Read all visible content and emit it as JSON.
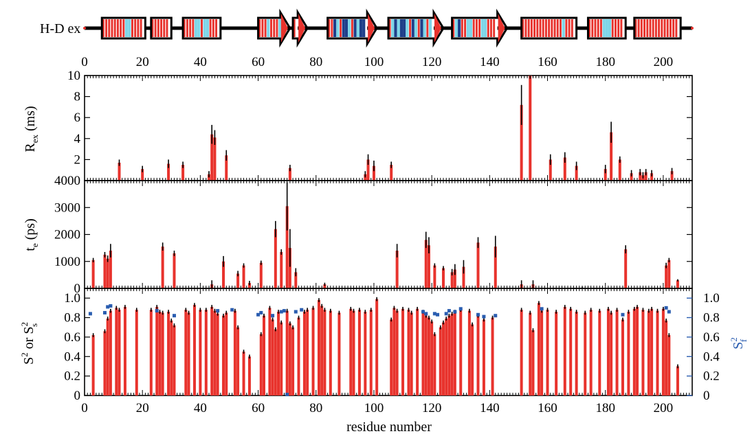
{
  "chart_data": {
    "type": "bar",
    "xlabel": "residue number",
    "xlim": [
      0,
      210
    ],
    "x_ticks": [
      0,
      20,
      40,
      60,
      80,
      100,
      120,
      140,
      160,
      180,
      200
    ],
    "colors": {
      "bar": "#e8332d",
      "error": "#000000",
      "sf2": "#2a5db0",
      "dark_blue": "#1f3f8a",
      "light_blue": "#7ed6e8"
    },
    "hdex": {
      "label": "H-D ex",
      "elements": [
        {
          "type": "helix",
          "start": 6,
          "end": 21,
          "blue": [
            [
              14,
              "l"
            ],
            [
              15,
              "l"
            ]
          ]
        },
        {
          "type": "helix",
          "start": 23,
          "end": 30,
          "blue": []
        },
        {
          "type": "helix",
          "start": 34,
          "end": 47,
          "blue": [
            [
              38,
              "l"
            ],
            [
              39,
              "l"
            ],
            [
              41,
              "l"
            ],
            [
              42,
              "l"
            ]
          ]
        },
        {
          "type": "strand",
          "start": 60,
          "end": 71,
          "blue": [
            [
              63,
              "l"
            ],
            [
              67,
              "l"
            ]
          ]
        },
        {
          "type": "strand",
          "start": 72,
          "end": 77,
          "blue": []
        },
        {
          "type": "strand",
          "start": 84,
          "end": 101,
          "blue": [
            [
              86,
              "d"
            ],
            [
              87,
              "l"
            ],
            [
              89,
              "d"
            ],
            [
              90,
              "d"
            ],
            [
              91,
              "l"
            ],
            [
              93,
              "d"
            ],
            [
              94,
              "l"
            ],
            [
              95,
              "d"
            ],
            [
              96,
              "d"
            ],
            [
              98,
              "l"
            ]
          ]
        },
        {
          "type": "strand",
          "start": 105,
          "end": 124,
          "blue": [
            [
              106,
              "l"
            ],
            [
              107,
              "d"
            ],
            [
              108,
              "l"
            ],
            [
              109,
              "d"
            ],
            [
              110,
              "d"
            ],
            [
              111,
              "l"
            ],
            [
              113,
              "d"
            ],
            [
              114,
              "l"
            ],
            [
              116,
              "d"
            ],
            [
              117,
              "l"
            ],
            [
              119,
              "l"
            ]
          ]
        },
        {
          "type": "strand",
          "start": 127,
          "end": 146,
          "blue": [
            [
              128,
              "l"
            ],
            [
              129,
              "d"
            ],
            [
              132,
              "l"
            ],
            [
              133,
              "l"
            ],
            [
              137,
              "l"
            ],
            [
              138,
              "l"
            ]
          ]
        },
        {
          "type": "helix",
          "start": 151,
          "end": 170,
          "blue": [
            [
              165,
              "l"
            ]
          ]
        },
        {
          "type": "helix",
          "start": 174,
          "end": 187,
          "blue": [
            [
              179,
              "l"
            ],
            [
              180,
              "l"
            ],
            [
              181,
              "l"
            ]
          ]
        },
        {
          "type": "helix",
          "start": 190,
          "end": 206,
          "blue": []
        }
      ]
    },
    "rex": {
      "ylabel_main": "R",
      "ylabel_sub": "ex",
      "ylabel_unit": " (ms)",
      "ylim": [
        0,
        10
      ],
      "ticks": [
        2,
        4,
        6,
        8,
        10
      ],
      "points": [
        [
          12,
          1.7,
          0.3
        ],
        [
          20,
          1.1,
          0.3
        ],
        [
          29,
          1.6,
          0.4
        ],
        [
          34,
          1.5,
          0.3
        ],
        [
          43,
          0.6,
          0.3
        ],
        [
          44,
          4.4,
          0.9
        ],
        [
          45,
          4.1,
          0.7
        ],
        [
          49,
          2.4,
          0.5
        ],
        [
          71,
          1.2,
          0.3
        ],
        [
          97,
          0.6,
          0.3
        ],
        [
          98,
          2.0,
          0.5
        ],
        [
          100,
          1.4,
          0.5
        ],
        [
          106,
          1.5,
          0.3
        ],
        [
          151,
          7.2,
          1.9
        ],
        [
          154,
          10.0,
          0.3
        ],
        [
          161,
          2.0,
          0.5
        ],
        [
          166,
          2.2,
          0.5
        ],
        [
          170,
          1.4,
          0.4
        ],
        [
          180,
          1.1,
          0.4
        ],
        [
          182,
          4.6,
          1.0
        ],
        [
          185,
          2.0,
          0.3
        ],
        [
          189,
          0.7,
          0.3
        ],
        [
          192,
          0.8,
          0.3
        ],
        [
          193,
          0.5,
          0.3
        ],
        [
          194,
          0.8,
          0.3
        ],
        [
          196,
          0.7,
          0.3
        ],
        [
          203,
          0.9,
          0.3
        ]
      ]
    },
    "te": {
      "ylabel_main": "t",
      "ylabel_sub": "e",
      "ylabel_unit": " (ps)",
      "ylim": [
        0,
        4000
      ],
      "ticks": [
        0,
        1000,
        2000,
        3000,
        4000
      ],
      "points": [
        [
          3,
          1050,
          80
        ],
        [
          7,
          1250,
          100
        ],
        [
          8,
          1100,
          120
        ],
        [
          9,
          1400,
          250
        ],
        [
          27,
          1550,
          150
        ],
        [
          31,
          1300,
          100
        ],
        [
          44,
          150,
          150
        ],
        [
          48,
          1000,
          200
        ],
        [
          53,
          550,
          100
        ],
        [
          55,
          850,
          80
        ],
        [
          57,
          200,
          80
        ],
        [
          61,
          950,
          80
        ],
        [
          66,
          2200,
          300
        ],
        [
          68,
          1350,
          100
        ],
        [
          70,
          3050,
          900
        ],
        [
          71,
          1500,
          700
        ],
        [
          73,
          600,
          150
        ],
        [
          83,
          150,
          60
        ],
        [
          108,
          1400,
          250
        ],
        [
          118,
          1800,
          300
        ],
        [
          119,
          1600,
          300
        ],
        [
          121,
          850,
          80
        ],
        [
          124,
          750,
          80
        ],
        [
          127,
          600,
          120
        ],
        [
          128,
          700,
          200
        ],
        [
          131,
          800,
          250
        ],
        [
          136,
          1700,
          200
        ],
        [
          142,
          1550,
          400
        ],
        [
          151,
          150,
          150
        ],
        [
          155,
          150,
          150
        ],
        [
          172,
          0,
          60
        ],
        [
          187,
          1450,
          150
        ],
        [
          201,
          850,
          100
        ],
        [
          202,
          1050,
          80
        ],
        [
          205,
          300,
          40
        ]
      ]
    },
    "s2": {
      "ylabel_main": "S",
      "ylabel_sup": "2",
      "ylabel_mid": " or S",
      "ylabel_sup2": "2",
      "ylabel_sub2": "s",
      "ylim": [
        0,
        1.1
      ],
      "ticks": [
        0,
        0.2,
        0.4,
        0.6,
        0.8,
        1.0
      ],
      "tick_labels": [
        "0",
        "0.2",
        "0.4",
        "0.6",
        "0.8",
        "1.0"
      ],
      "right_ylabel_main": "S",
      "right_ylabel_sup": "2",
      "right_ylabel_sub": "f",
      "right_ticks": [
        0,
        0.2,
        0.4,
        0.6,
        0.8,
        1.0
      ],
      "right_tick_labels": [
        "0",
        "0.2",
        "0.4",
        "0.6",
        "0.8",
        "1.0"
      ],
      "bars": [
        [
          3,
          0.62
        ],
        [
          7,
          0.66
        ],
        [
          8,
          0.79
        ],
        [
          9,
          0.87
        ],
        [
          11,
          0.9
        ],
        [
          12,
          0.88
        ],
        [
          14,
          0.91
        ],
        [
          18,
          0.88
        ],
        [
          23,
          0.88
        ],
        [
          25,
          0.91
        ],
        [
          26,
          0.86
        ],
        [
          27,
          0.85
        ],
        [
          29,
          0.86
        ],
        [
          30,
          0.77
        ],
        [
          31,
          0.72
        ],
        [
          35,
          0.88
        ],
        [
          36,
          0.85
        ],
        [
          38,
          0.93
        ],
        [
          40,
          0.88
        ],
        [
          42,
          0.88
        ],
        [
          44,
          0.91
        ],
        [
          45,
          0.87
        ],
        [
          46,
          0.84
        ],
        [
          48,
          0.82
        ],
        [
          49,
          0.85
        ],
        [
          52,
          0.87
        ],
        [
          53,
          0.7
        ],
        [
          55,
          0.45
        ],
        [
          57,
          0.4
        ],
        [
          61,
          0.63
        ],
        [
          62,
          0.82
        ],
        [
          64,
          0.9
        ],
        [
          65,
          0.78
        ],
        [
          66,
          0.68
        ],
        [
          67,
          0.86
        ],
        [
          68,
          0.75
        ],
        [
          70,
          0.87
        ],
        [
          71,
          0.74
        ],
        [
          72,
          0.7
        ],
        [
          74,
          0.8
        ],
        [
          76,
          0.86
        ],
        [
          77,
          0.88
        ],
        [
          79,
          0.9
        ],
        [
          81,
          0.98
        ],
        [
          82,
          0.92
        ],
        [
          83,
          0.88
        ],
        [
          85,
          0.87
        ],
        [
          88,
          0.85
        ],
        [
          92,
          0.89
        ],
        [
          93,
          0.87
        ],
        [
          95,
          0.88
        ],
        [
          97,
          0.86
        ],
        [
          99,
          0.88
        ],
        [
          101,
          0.99
        ],
        [
          106,
          0.78
        ],
        [
          107,
          0.9
        ],
        [
          108,
          0.87
        ],
        [
          110,
          0.89
        ],
        [
          112,
          0.88
        ],
        [
          113,
          0.85
        ],
        [
          115,
          0.89
        ],
        [
          117,
          0.86
        ],
        [
          118,
          0.82
        ],
        [
          119,
          0.8
        ],
        [
          120,
          0.76
        ],
        [
          121,
          0.63
        ],
        [
          123,
          0.7
        ],
        [
          124,
          0.75
        ],
        [
          125,
          0.79
        ],
        [
          126,
          0.82
        ],
        [
          127,
          0.84
        ],
        [
          128,
          0.86
        ],
        [
          130,
          0.88
        ],
        [
          133,
          0.87
        ],
        [
          134,
          0.73
        ],
        [
          136,
          0.82
        ],
        [
          138,
          0.78
        ],
        [
          141,
          0.8
        ],
        [
          151,
          0.88
        ],
        [
          154,
          0.85
        ],
        [
          155,
          0.67
        ],
        [
          157,
          0.95
        ],
        [
          158,
          0.87
        ],
        [
          160,
          0.88
        ],
        [
          163,
          0.86
        ],
        [
          166,
          0.91
        ],
        [
          168,
          0.89
        ],
        [
          170,
          0.86
        ],
        [
          173,
          0.85
        ],
        [
          175,
          0.88
        ],
        [
          178,
          0.87
        ],
        [
          181,
          0.89
        ],
        [
          182,
          0.85
        ],
        [
          184,
          0.88
        ],
        [
          186,
          0.78
        ],
        [
          188,
          0.86
        ],
        [
          190,
          0.89
        ],
        [
          191,
          0.91
        ],
        [
          193,
          0.88
        ],
        [
          195,
          0.87
        ],
        [
          196,
          0.89
        ],
        [
          198,
          0.87
        ],
        [
          200,
          0.89
        ],
        [
          201,
          0.77
        ],
        [
          202,
          0.62
        ],
        [
          205,
          0.3
        ]
      ],
      "sf2": [
        [
          2,
          0.84
        ],
        [
          7,
          0.85
        ],
        [
          8,
          0.91
        ],
        [
          9,
          0.92
        ],
        [
          25,
          0.87
        ],
        [
          31,
          0.82
        ],
        [
          46,
          0.87
        ],
        [
          51,
          0.88
        ],
        [
          60,
          0.83
        ],
        [
          61,
          0.85
        ],
        [
          65,
          0.82
        ],
        [
          68,
          0.86
        ],
        [
          69,
          0.87
        ],
        [
          70,
          0.01
        ],
        [
          73,
          0.86
        ],
        [
          75,
          0.88
        ],
        [
          117,
          0.86
        ],
        [
          118,
          0.84
        ],
        [
          121,
          0.84
        ],
        [
          122,
          0.83
        ],
        [
          125,
          0.84
        ],
        [
          126,
          0.87
        ],
        [
          128,
          0.86
        ],
        [
          130,
          0.89
        ],
        [
          136,
          0.83
        ],
        [
          138,
          0.81
        ],
        [
          142,
          0.82
        ],
        [
          158,
          0.89
        ],
        [
          186,
          0.83
        ],
        [
          201,
          0.9
        ],
        [
          202,
          0.86
        ]
      ]
    }
  }
}
